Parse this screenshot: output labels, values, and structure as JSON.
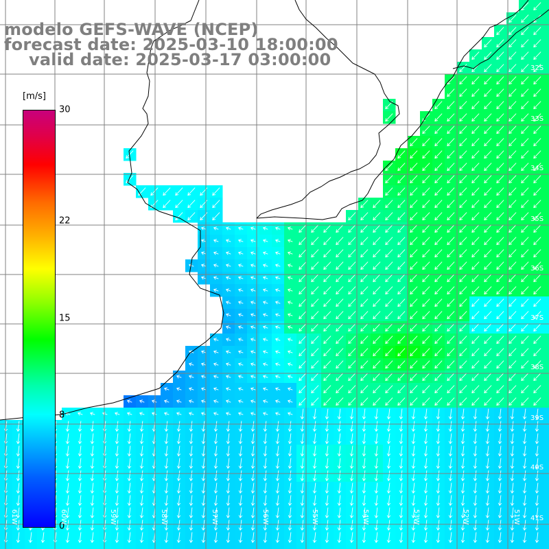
{
  "header": {
    "model_line": "modelo GEFS-WAVE (NCEP)",
    "forecast_line": "forecast date: 2025-03-10 18:00:00",
    "valid_line": "valid date: 2025-03-17 03:00:00"
  },
  "colorbar": {
    "unit": "[m/s]",
    "ticks": [
      {
        "value": 30,
        "label": "30"
      },
      {
        "value": 22,
        "label": "22"
      },
      {
        "value": 15,
        "label": "15"
      },
      {
        "value": 8,
        "label": "8"
      },
      {
        "value": 0,
        "label": "0"
      }
    ],
    "min": 0,
    "max": 30
  },
  "map": {
    "lon_range": [
      -61,
      -50
    ],
    "lat_range": [
      -41,
      -31
    ],
    "lat_labels": [
      "32S",
      "33S",
      "34S",
      "35S",
      "36S",
      "37S",
      "38S",
      "39S",
      "40S",
      "41S"
    ],
    "lon_labels": [
      "61W",
      "60W",
      "59W",
      "58W",
      "57W",
      "56W",
      "55W",
      "54W",
      "53W",
      "52W",
      "51W"
    ],
    "colors": {
      "land": "#ffffff",
      "coastline": "#000000",
      "gridline": "#808080",
      "arrow": "#ffffff"
    }
  }
}
